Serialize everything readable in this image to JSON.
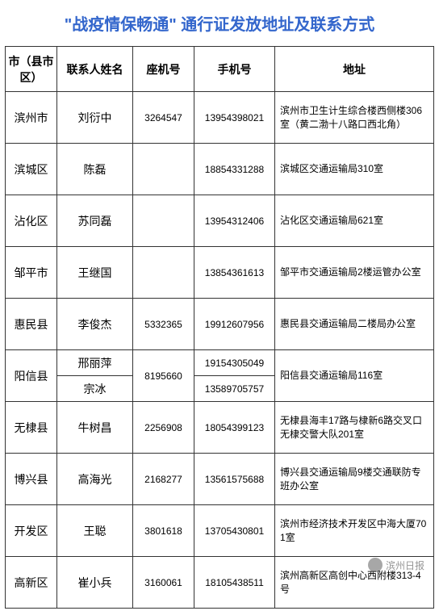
{
  "title_color": "#3366cc",
  "title_text": "\"战疫情保畅通\" 通行证发放地址及联系方式",
  "headers": {
    "region": "市（县市区）",
    "name": "联系人姓名",
    "tel": "座机号",
    "mobile": "手机号",
    "addr": "地址"
  },
  "rows": [
    {
      "region": "滨州市",
      "contacts": [
        {
          "name": "刘衍中",
          "mobile": "13954398021"
        }
      ],
      "tel": "3264547",
      "addr": "滨州市卫生计生综合楼西侧楼306室（黄二渤十八路口西北角）"
    },
    {
      "region": "滨城区",
      "contacts": [
        {
          "name": "陈磊",
          "mobile": "18854331288"
        }
      ],
      "tel": "",
      "addr": "滨城区交通运输局310室"
    },
    {
      "region": "沾化区",
      "contacts": [
        {
          "name": "苏同磊",
          "mobile": "13954312406"
        }
      ],
      "tel": "",
      "addr": "沾化区交通运输局621室"
    },
    {
      "region": "邹平市",
      "contacts": [
        {
          "name": "王继国",
          "mobile": "13854361613"
        }
      ],
      "tel": "",
      "addr": "邹平市交通运输局2楼运管办公室"
    },
    {
      "region": "惠民县",
      "contacts": [
        {
          "name": "李俊杰",
          "mobile": "19912607956"
        }
      ],
      "tel": "5332365",
      "addr": "惠民县交通运输局二楼局办公室"
    },
    {
      "region": "阳信县",
      "contacts": [
        {
          "name": "邢丽萍",
          "mobile": "19154305049"
        },
        {
          "name": "宗冰",
          "mobile": "13589705757"
        }
      ],
      "tel": "8195660",
      "addr": "阳信县交通运输局116室"
    },
    {
      "region": "无棣县",
      "contacts": [
        {
          "name": "牛树昌",
          "mobile": "18054399123"
        }
      ],
      "tel": "2256908",
      "addr": "无棣县海丰17路与棣新6路交叉口无棣交警大队201室"
    },
    {
      "region": "博兴县",
      "contacts": [
        {
          "name": "高海光",
          "mobile": "13561575688"
        }
      ],
      "tel": "2168277",
      "addr": "博兴县交通运输局9楼交通联防专班办公室"
    },
    {
      "region": "开发区",
      "contacts": [
        {
          "name": "王聪",
          "mobile": "13705430801"
        }
      ],
      "tel": "3801618",
      "addr": "滨州市经济技术开发区中海大厦701室"
    },
    {
      "region": "高新区",
      "contacts": [
        {
          "name": "崔小兵",
          "mobile": "18105438511"
        }
      ],
      "tel": "3160061",
      "addr": "滨州高新区高创中心西附楼313-4号"
    }
  ],
  "watermark": "滨州日报"
}
